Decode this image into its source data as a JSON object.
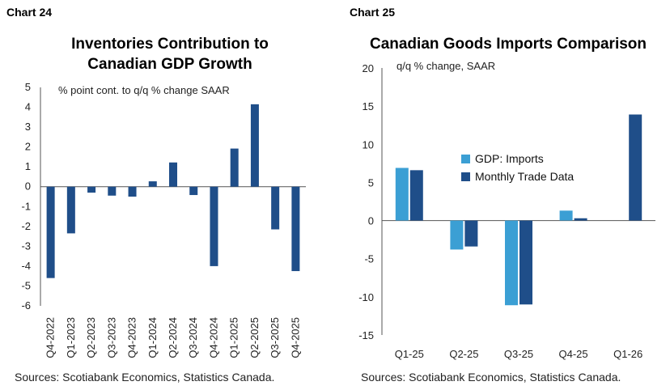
{
  "chart_data": [
    {
      "type": "bar",
      "label": "Chart 24",
      "title": "Inventories Contribution to Canadian GDP Growth",
      "title_lines": [
        "Inventories Contribution to",
        "Canadian GDP Growth"
      ],
      "subtitle": "% point cont. to q/q % change SAAR",
      "categories": [
        "Q4-2022",
        "Q1-2023",
        "Q2-2023",
        "Q3-2023",
        "Q4-2023",
        "Q1-2024",
        "Q2-2024",
        "Q3-2024",
        "Q4-2024",
        "Q1-2025",
        "Q2-2025",
        "Q3-2025",
        "Q4-2025"
      ],
      "series": [
        {
          "values": [
            -4.6,
            -2.35,
            -0.3,
            -0.45,
            -0.5,
            0.27,
            1.22,
            -0.42,
            -4.0,
            1.92,
            4.15,
            -2.15,
            -4.25
          ],
          "color": "#1f4e89"
        }
      ],
      "ylim": [
        -6,
        5
      ],
      "yticks": [
        -6,
        -5,
        -4,
        -3,
        -2,
        -1,
        0,
        1,
        2,
        3,
        4,
        5
      ],
      "grid": false,
      "source": "Sources: Scotiabank Economics, Statistics Canada."
    },
    {
      "type": "bar",
      "label": "Chart 25",
      "title": "Canadian Goods Imports Comparison",
      "subtitle": "q/q % change, SAAR",
      "categories": [
        "Q1-25",
        "Q2-25",
        "Q3-25",
        "Q4-25",
        "Q1-26"
      ],
      "series": [
        {
          "name": "GDP: Imports",
          "values": [
            6.9,
            -3.8,
            -11.1,
            1.3,
            null
          ],
          "color": "#3b9fd4"
        },
        {
          "name": "Monthly Trade Data",
          "values": [
            6.6,
            -3.4,
            -11.0,
            0.3,
            13.9
          ],
          "color": "#1f4e89"
        }
      ],
      "ylim": [
        -15,
        20
      ],
      "yticks": [
        -15,
        -10,
        -5,
        0,
        5,
        10,
        15,
        20
      ],
      "legend": "inside-center",
      "grid": false,
      "source": "Sources: Scotiabank Economics, Statistics Canada."
    }
  ]
}
